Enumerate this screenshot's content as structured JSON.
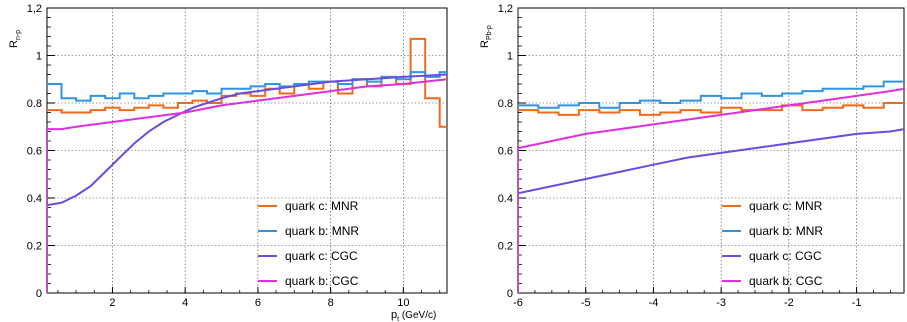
{
  "chart_data": [
    {
      "type": "line",
      "title": "",
      "ylabel": "R",
      "ylabel_sub": "n-p",
      "xlabel": "p",
      "xlabel_sub": "t",
      "xlabel_unit": "(GeV/c)",
      "xlim": [
        0.2,
        11.2
      ],
      "ylim": [
        0,
        1.2
      ],
      "xticks": [
        2,
        4,
        6,
        8,
        10
      ],
      "xtick_labels": [
        "2",
        "4",
        "6",
        "8",
        "10"
      ],
      "yticks": [
        0,
        0.2,
        0.4,
        0.6,
        0.8,
        1,
        1.2
      ],
      "ytick_labels": [
        "0",
        "0.2",
        "0.4",
        "0.6",
        "0.8",
        "1",
        "1,2"
      ],
      "grid": true,
      "legend_position": "bottom-right",
      "series": [
        {
          "name": "quark c: MNR",
          "color": "#f06a1c",
          "style": "histogram",
          "x": [
            0.2,
            0.6,
            1.0,
            1.4,
            1.8,
            2.2,
            2.6,
            3.0,
            3.4,
            3.8,
            4.2,
            4.6,
            5.0,
            5.4,
            5.8,
            6.2,
            6.6,
            7.0,
            7.4,
            7.8,
            8.2,
            8.6,
            9.0,
            9.4,
            9.8,
            10.2,
            10.6,
            11.0
          ],
          "y": [
            0.77,
            0.76,
            0.76,
            0.77,
            0.78,
            0.77,
            0.78,
            0.79,
            0.78,
            0.8,
            0.81,
            0.8,
            0.83,
            0.84,
            0.83,
            0.86,
            0.84,
            0.88,
            0.86,
            0.89,
            0.84,
            0.9,
            0.87,
            0.91,
            0.88,
            1.07,
            0.82,
            0.7
          ]
        },
        {
          "name": "quark b: MNR",
          "color": "#2f95e0",
          "style": "histogram",
          "x": [
            0.2,
            0.6,
            1.0,
            1.4,
            1.8,
            2.2,
            2.6,
            3.0,
            3.4,
            3.8,
            4.2,
            4.6,
            5.0,
            5.4,
            5.8,
            6.2,
            6.6,
            7.0,
            7.4,
            7.8,
            8.2,
            8.6,
            9.0,
            9.4,
            9.8,
            10.2,
            10.6,
            11.0
          ],
          "y": [
            0.88,
            0.82,
            0.81,
            0.83,
            0.82,
            0.84,
            0.82,
            0.83,
            0.84,
            0.84,
            0.85,
            0.84,
            0.86,
            0.86,
            0.87,
            0.88,
            0.87,
            0.88,
            0.89,
            0.89,
            0.88,
            0.9,
            0.89,
            0.91,
            0.9,
            0.93,
            0.91,
            0.93
          ]
        },
        {
          "name": "quark c: CGC",
          "color": "#6a4ce0",
          "style": "smooth",
          "x": [
            0.2,
            0.6,
            1.0,
            1.4,
            1.8,
            2.2,
            2.6,
            3.0,
            3.4,
            3.8,
            4.2,
            4.6,
            5.0,
            5.5,
            6.0,
            7.0,
            8.0,
            9.0,
            10.0,
            11.2
          ],
          "y": [
            0.37,
            0.38,
            0.41,
            0.45,
            0.51,
            0.57,
            0.63,
            0.68,
            0.72,
            0.75,
            0.78,
            0.8,
            0.82,
            0.84,
            0.85,
            0.87,
            0.89,
            0.9,
            0.91,
            0.92
          ]
        },
        {
          "name": "quark b: CGC",
          "color": "#e02ee0",
          "style": "smooth",
          "x": [
            0.2,
            0.6,
            1.0,
            1.5,
            2.0,
            2.5,
            3.0,
            3.5,
            4.0,
            5.0,
            6.0,
            7.0,
            8.0,
            9.0,
            10.0,
            11.2
          ],
          "y": [
            0.69,
            0.69,
            0.7,
            0.71,
            0.72,
            0.73,
            0.74,
            0.75,
            0.76,
            0.79,
            0.81,
            0.83,
            0.85,
            0.87,
            0.88,
            0.9
          ],
          "drop_from_zero": true
        }
      ]
    },
    {
      "type": "line",
      "title": "",
      "ylabel": "R",
      "ylabel_sub": "Pb-p",
      "xlabel": "",
      "xlim": [
        -6,
        -0.3
      ],
      "ylim": [
        0,
        1.2
      ],
      "xticks": [
        -6,
        -5,
        -4,
        -3,
        -2,
        -1
      ],
      "xtick_labels": [
        "-6",
        "-5",
        "-4",
        "-3",
        "-2",
        "-1"
      ],
      "yticks": [
        0,
        0.2,
        0.4,
        0.6,
        0.8,
        1,
        1.2
      ],
      "ytick_labels": [
        "0",
        "0.2",
        "0.4",
        "0.6",
        "0.8",
        "1",
        "1,2"
      ],
      "grid": true,
      "legend_position": "bottom-right",
      "series": [
        {
          "name": "quark c: MNR",
          "color": "#f06a1c",
          "style": "histogram",
          "x": [
            -6.0,
            -5.7,
            -5.4,
            -5.1,
            -4.8,
            -4.5,
            -4.2,
            -3.9,
            -3.6,
            -3.3,
            -3.0,
            -2.7,
            -2.4,
            -2.1,
            -1.8,
            -1.5,
            -1.2,
            -0.9,
            -0.6
          ],
          "y": [
            0.77,
            0.76,
            0.75,
            0.77,
            0.76,
            0.77,
            0.75,
            0.76,
            0.77,
            0.76,
            0.78,
            0.77,
            0.77,
            0.79,
            0.77,
            0.78,
            0.79,
            0.78,
            0.8
          ]
        },
        {
          "name": "quark b: MNR",
          "color": "#2f95e0",
          "style": "histogram",
          "x": [
            -6.0,
            -5.7,
            -5.4,
            -5.1,
            -4.8,
            -4.5,
            -4.2,
            -3.9,
            -3.6,
            -3.3,
            -3.0,
            -2.7,
            -2.4,
            -2.1,
            -1.8,
            -1.5,
            -1.2,
            -0.9,
            -0.6
          ],
          "y": [
            0.79,
            0.78,
            0.79,
            0.8,
            0.78,
            0.8,
            0.81,
            0.8,
            0.81,
            0.83,
            0.82,
            0.84,
            0.83,
            0.84,
            0.85,
            0.86,
            0.86,
            0.87,
            0.89
          ]
        },
        {
          "name": "quark c: CGC",
          "color": "#6a4ce0",
          "style": "smooth",
          "x": [
            -6.0,
            -5.5,
            -5.0,
            -4.5,
            -4.0,
            -3.5,
            -3.0,
            -2.5,
            -2.0,
            -1.5,
            -1.0,
            -0.5,
            -0.3
          ],
          "y": [
            0.42,
            0.45,
            0.48,
            0.51,
            0.54,
            0.57,
            0.59,
            0.61,
            0.63,
            0.65,
            0.67,
            0.68,
            0.69
          ],
          "drop_from_zero": true
        },
        {
          "name": "quark b: CGC",
          "color": "#e02ee0",
          "style": "smooth",
          "x": [
            -6.0,
            -5.5,
            -5.0,
            -4.5,
            -4.0,
            -3.5,
            -3.0,
            -2.5,
            -2.0,
            -1.5,
            -1.0,
            -0.5,
            -0.3
          ],
          "y": [
            0.61,
            0.64,
            0.67,
            0.69,
            0.71,
            0.73,
            0.75,
            0.77,
            0.79,
            0.81,
            0.83,
            0.85,
            0.86
          ],
          "drop_from_zero": true
        }
      ]
    }
  ]
}
